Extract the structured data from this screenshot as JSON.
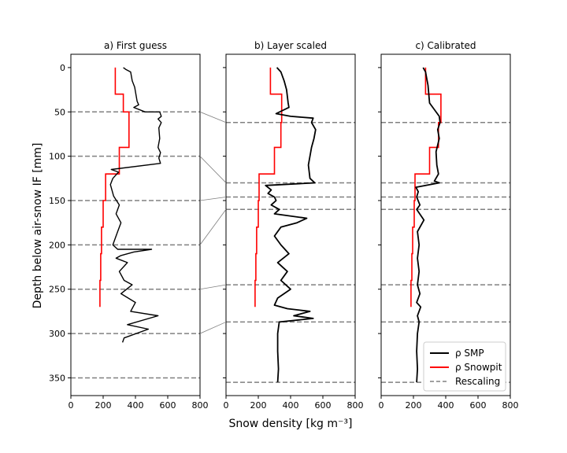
{
  "chart_data": {
    "type": "line",
    "ylabel": "Depth below air-snow IF [mm]",
    "xlabel": "Snow density [kg m⁻³]",
    "xlim": [
      0,
      800
    ],
    "ylim": [
      370,
      -15
    ],
    "x_ticks": [
      "0",
      "200",
      "400",
      "600",
      "800"
    ],
    "y_ticks": [
      "0",
      "50",
      "100",
      "150",
      "200",
      "250",
      "300",
      "350"
    ],
    "y_tick_values": [
      0,
      50,
      100,
      150,
      200,
      250,
      300,
      350
    ],
    "grid": false,
    "legend": {
      "placement": "bottom-right",
      "entries": [
        "ρ SMP",
        "ρ Snowpit",
        "Rescaling"
      ]
    },
    "colors": {
      "smp": "#000000",
      "snowpit": "#ff0000",
      "rescaling": "#808080"
    },
    "panels": [
      {
        "title": "a) First guess",
        "show_y_ticks": true,
        "rescaling_depths": [
          50,
          100,
          150,
          200,
          250,
          300,
          350
        ],
        "snowpit": [
          [
            275,
            0
          ],
          [
            275,
            30
          ],
          [
            325,
            30
          ],
          [
            325,
            50
          ],
          [
            360,
            50
          ],
          [
            360,
            90
          ],
          [
            300,
            90
          ],
          [
            300,
            120
          ],
          [
            215,
            120
          ],
          [
            215,
            150
          ],
          [
            200,
            150
          ],
          [
            200,
            180
          ],
          [
            190,
            180
          ],
          [
            190,
            210
          ],
          [
            185,
            210
          ],
          [
            185,
            240
          ],
          [
            180,
            240
          ],
          [
            180,
            270
          ]
        ],
        "smp": [
          [
            325,
            0
          ],
          [
            340,
            2
          ],
          [
            370,
            5
          ],
          [
            380,
            15
          ],
          [
            395,
            22
          ],
          [
            410,
            38
          ],
          [
            420,
            42
          ],
          [
            390,
            45
          ],
          [
            460,
            50
          ],
          [
            550,
            50
          ],
          [
            560,
            55
          ],
          [
            540,
            58
          ],
          [
            560,
            62
          ],
          [
            545,
            68
          ],
          [
            550,
            80
          ],
          [
            540,
            90
          ],
          [
            555,
            96
          ],
          [
            545,
            102
          ],
          [
            555,
            108
          ],
          [
            250,
            115
          ],
          [
            295,
            118
          ],
          [
            260,
            125
          ],
          [
            245,
            132
          ],
          [
            265,
            145
          ],
          [
            300,
            155
          ],
          [
            280,
            165
          ],
          [
            310,
            175
          ],
          [
            290,
            185
          ],
          [
            260,
            200
          ],
          [
            290,
            205
          ],
          [
            500,
            205
          ],
          [
            390,
            208
          ],
          [
            310,
            212
          ],
          [
            280,
            215
          ],
          [
            350,
            220
          ],
          [
            300,
            230
          ],
          [
            330,
            240
          ],
          [
            380,
            245
          ],
          [
            310,
            255
          ],
          [
            400,
            265
          ],
          [
            370,
            275
          ],
          [
            540,
            280
          ],
          [
            350,
            290
          ],
          [
            480,
            295
          ],
          [
            330,
            305
          ],
          [
            320,
            310
          ]
        ]
      },
      {
        "title": "b) Layer scaled",
        "show_y_ticks": false,
        "rescaling_depths": [
          62,
          130,
          146,
          160,
          245,
          287,
          355
        ],
        "snowpit": [
          [
            275,
            0
          ],
          [
            275,
            30
          ],
          [
            345,
            30
          ],
          [
            345,
            62
          ],
          [
            340,
            62
          ],
          [
            340,
            90
          ],
          [
            300,
            90
          ],
          [
            300,
            120
          ],
          [
            205,
            120
          ],
          [
            205,
            150
          ],
          [
            200,
            150
          ],
          [
            200,
            180
          ],
          [
            190,
            180
          ],
          [
            190,
            210
          ],
          [
            185,
            210
          ],
          [
            185,
            240
          ],
          [
            180,
            240
          ],
          [
            180,
            270
          ]
        ],
        "smp": [
          [
            315,
            0
          ],
          [
            340,
            5
          ],
          [
            360,
            15
          ],
          [
            375,
            25
          ],
          [
            385,
            40
          ],
          [
            390,
            45
          ],
          [
            310,
            52
          ],
          [
            400,
            55
          ],
          [
            540,
            57
          ],
          [
            530,
            62
          ],
          [
            555,
            70
          ],
          [
            545,
            80
          ],
          [
            530,
            90
          ],
          [
            520,
            100
          ],
          [
            510,
            110
          ],
          [
            520,
            125
          ],
          [
            550,
            130
          ],
          [
            245,
            133
          ],
          [
            280,
            138
          ],
          [
            260,
            142
          ],
          [
            300,
            146
          ],
          [
            310,
            150
          ],
          [
            280,
            155
          ],
          [
            330,
            160
          ],
          [
            300,
            165
          ],
          [
            500,
            170
          ],
          [
            440,
            175
          ],
          [
            340,
            180
          ],
          [
            300,
            190
          ],
          [
            340,
            200
          ],
          [
            390,
            210
          ],
          [
            320,
            220
          ],
          [
            380,
            230
          ],
          [
            340,
            240
          ],
          [
            400,
            250
          ],
          [
            320,
            260
          ],
          [
            300,
            268
          ],
          [
            380,
            272
          ],
          [
            520,
            275
          ],
          [
            420,
            280
          ],
          [
            540,
            283
          ],
          [
            330,
            287
          ],
          [
            320,
            300
          ],
          [
            320,
            320
          ],
          [
            325,
            340
          ],
          [
            320,
            355
          ]
        ]
      },
      {
        "title": "c) Calibrated",
        "show_y_ticks": false,
        "rescaling_depths": [
          62,
          130,
          146,
          160,
          245,
          287,
          355
        ],
        "snowpit": [
          [
            275,
            0
          ],
          [
            275,
            30
          ],
          [
            370,
            30
          ],
          [
            370,
            62
          ],
          [
            355,
            62
          ],
          [
            355,
            90
          ],
          [
            300,
            90
          ],
          [
            300,
            120
          ],
          [
            210,
            120
          ],
          [
            210,
            150
          ],
          [
            205,
            150
          ],
          [
            205,
            180
          ],
          [
            195,
            180
          ],
          [
            195,
            210
          ],
          [
            190,
            210
          ],
          [
            190,
            240
          ],
          [
            185,
            240
          ],
          [
            185,
            270
          ]
        ],
        "smp": [
          [
            260,
            0
          ],
          [
            275,
            5
          ],
          [
            280,
            10
          ],
          [
            290,
            20
          ],
          [
            300,
            40
          ],
          [
            360,
            55
          ],
          [
            365,
            62
          ],
          [
            350,
            70
          ],
          [
            360,
            80
          ],
          [
            340,
            95
          ],
          [
            345,
            110
          ],
          [
            355,
            120
          ],
          [
            330,
            128
          ],
          [
            360,
            130
          ],
          [
            215,
            135
          ],
          [
            230,
            140
          ],
          [
            220,
            146
          ],
          [
            240,
            155
          ],
          [
            220,
            160
          ],
          [
            265,
            172
          ],
          [
            225,
            185
          ],
          [
            235,
            200
          ],
          [
            225,
            215
          ],
          [
            235,
            230
          ],
          [
            225,
            245
          ],
          [
            240,
            255
          ],
          [
            220,
            265
          ],
          [
            245,
            270
          ],
          [
            225,
            280
          ],
          [
            235,
            287
          ],
          [
            225,
            300
          ],
          [
            220,
            320
          ],
          [
            225,
            340
          ],
          [
            220,
            355
          ]
        ]
      }
    ]
  }
}
